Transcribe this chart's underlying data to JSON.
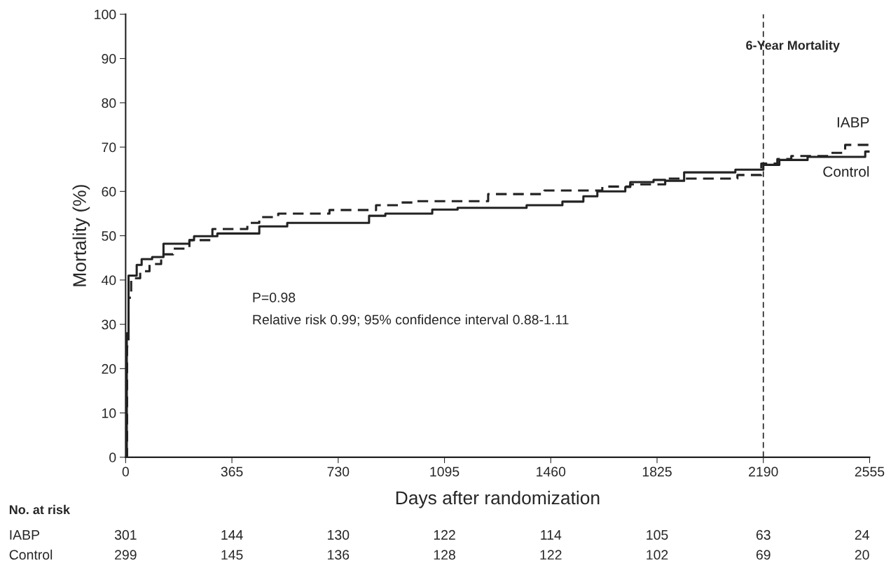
{
  "chart_data": {
    "type": "step",
    "xlabel": "Days after randomization",
    "ylabel": "Mortality (%)",
    "xlim": [
      0,
      2555
    ],
    "ylim": [
      0,
      100
    ],
    "xticks": [
      0,
      365,
      730,
      1095,
      1460,
      1825,
      2190,
      2555
    ],
    "yticks": [
      0,
      10,
      20,
      30,
      40,
      50,
      60,
      70,
      80,
      90,
      100
    ],
    "grid": false,
    "legend": false,
    "series": [
      {
        "name": "IABP",
        "color": "#222222",
        "line_style": "dashed",
        "x": [
          0,
          5,
          10,
          19,
          50,
          82,
          122,
          163,
          219,
          298,
          418,
          459,
          524,
          700,
          860,
          940,
          988,
          1245,
          1438,
          1637,
          1733,
          1853,
          2101,
          2183,
          2238,
          2286,
          2414,
          2471,
          2555
        ],
        "values": [
          0,
          25,
          36,
          40.4,
          42,
          43.6,
          45.8,
          47.1,
          49,
          51.5,
          52.9,
          54.2,
          55,
          55.8,
          56.9,
          57.5,
          57.8,
          59.4,
          60.2,
          61.1,
          61.6,
          62.9,
          63.7,
          66.3,
          67.3,
          68,
          68.7,
          70.5,
          70.5
        ]
      },
      {
        "name": "Control",
        "color": "#222222",
        "line_style": "solid",
        "x": [
          0,
          4,
          10,
          38,
          55,
          91,
          130,
          219,
          235,
          315,
          459,
          555,
          836,
          892,
          1053,
          1140,
          1377,
          1500,
          1572,
          1620,
          1716,
          1733,
          1813,
          1853,
          1918,
          2094,
          2190,
          2245,
          2342,
          2540,
          2555
        ],
        "values": [
          0,
          28,
          41,
          43.4,
          44.7,
          45.2,
          48.2,
          49,
          49.9,
          50.5,
          52.1,
          52.9,
          54.5,
          55,
          55.9,
          56.3,
          56.9,
          57.7,
          58.9,
          60,
          61,
          62.1,
          62.6,
          62.4,
          64.3,
          64.9,
          66,
          67.1,
          67.8,
          69,
          69
        ]
      }
    ],
    "ref_lines": [
      {
        "axis": "x",
        "value": 2190,
        "color": "#222222",
        "line_style": "dashed"
      }
    ],
    "annotations": [
      "P=0.98",
      "Relative risk 0.99; 95% confidence interval 0.88-1.11",
      "6-Year Mortality",
      "No. at risk",
      "IABP",
      "301",
      "144",
      "130",
      "122",
      "114",
      "105",
      "63",
      "24",
      "Control",
      "299",
      "145",
      "136",
      "128",
      "122",
      "102",
      "69",
      "20"
    ]
  }
}
